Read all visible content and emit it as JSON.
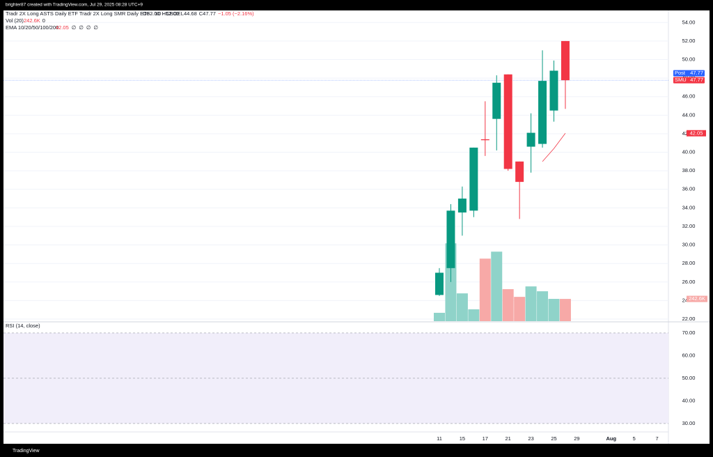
{
  "header": "brighter87 created with TradingView.com, Jul 29, 2025 08:28 UTC+9",
  "footer": "TradingView",
  "chart_data": [
    {
      "type": "candlestick",
      "title": "Tradr 2X Long ASTS Daily ETF Tradr 2X Long SMR Daily ETF · 1D · CBOE",
      "ohlc_legend": [
        "O52.00",
        "H52.00",
        "L44.68",
        "C47.77",
        "−1.05 (−2.16%)"
      ],
      "volume_legend": "Vol (20)",
      "volume_legend_values": [
        "242.6K",
        "0"
      ],
      "ema_legend": "EMA 10/20/50/100/200",
      "ema_legend_values": [
        "42.05",
        "∅",
        "∅",
        "∅",
        "∅"
      ],
      "categories": [
        "11",
        null,
        "15",
        null,
        "17",
        null,
        "21",
        null,
        "23",
        null,
        "25",
        null
      ],
      "open": [
        24.6,
        27.5,
        33.5,
        33.7,
        41.4,
        43.6,
        48.4,
        39.0,
        40.6,
        40.9,
        44.5,
        52.0
      ],
      "high": [
        27.5,
        34.4,
        36.3,
        40.5,
        45.5,
        48.3,
        48.4,
        39.0,
        44.2,
        51.0,
        49.9,
        52.0
      ],
      "low": [
        24.5,
        26.0,
        31.0,
        33.0,
        39.6,
        40.2,
        38.0,
        32.8,
        37.8,
        40.5,
        43.3,
        44.68
      ],
      "close": [
        27.0,
        33.7,
        35.0,
        40.5,
        41.3,
        47.5,
        38.2,
        36.8,
        42.1,
        47.7,
        48.8,
        47.77
      ],
      "up_color": "#089981",
      "down_color": "#f23645",
      "volume": {
        "values": [
          91,
          849,
          303,
          129,
          682,
          758,
          349,
          265,
          379,
          326,
          243,
          242.6
        ],
        "up_color": "#8fd3c9",
        "down_color": "#f7a9a7",
        "ylim": [
          0,
          3389
        ]
      },
      "volume_last_label": "242.6K",
      "ema": {
        "values": [
          null,
          null,
          null,
          null,
          null,
          null,
          null,
          null,
          null,
          39.0,
          40.4,
          42.05
        ],
        "color": "#f23645"
      },
      "price_lines": [
        {
          "name": "Post",
          "value": 47.77,
          "color": "#2962ff"
        },
        {
          "name": "SMU",
          "value": 47.77,
          "color": "#f23645"
        }
      ],
      "ylim": [
        21.7,
        55.3
      ],
      "yticks": [
        {
          "value": 22,
          "label": "22.00"
        },
        {
          "value": 24,
          "label": "24.00"
        },
        {
          "value": 26,
          "label": "26.00"
        },
        {
          "value": 28,
          "label": "28.00"
        },
        {
          "value": 30,
          "label": "30.00"
        },
        {
          "value": 32,
          "label": "32.00"
        },
        {
          "value": 34,
          "label": "34.00"
        },
        {
          "value": 36,
          "label": "36.00"
        },
        {
          "value": 38,
          "label": "38.00"
        },
        {
          "value": 40,
          "label": "40.00"
        },
        {
          "value": 42,
          "label": "42.00"
        },
        {
          "value": 44,
          "label": "44.00"
        },
        {
          "value": 46,
          "label": "46.00"
        },
        {
          "value": 48,
          "label": "48.00"
        },
        {
          "value": 50,
          "label": "50.00"
        },
        {
          "value": 52,
          "label": "52.00"
        },
        {
          "value": 54,
          "label": "54.00"
        }
      ],
      "xticks": [
        {
          "value": 12,
          "label": "29"
        },
        {
          "value": 15,
          "label": "Aug"
        },
        {
          "value": 17,
          "label": "5"
        },
        {
          "value": 19,
          "label": "7"
        }
      ],
      "grid": true
    },
    {
      "type": "rsi",
      "title": "RSI (14, close)",
      "ylim": [
        26.3,
        74.9
      ],
      "band": [
        30,
        70
      ],
      "band_color": "#f1eefa",
      "levels": [
        70,
        50,
        30
      ],
      "yticks": [
        {
          "value": 70,
          "label": "70.00"
        },
        {
          "value": 60,
          "label": "60.00"
        },
        {
          "value": 50,
          "label": "50.00"
        },
        {
          "value": 40,
          "label": "40.00"
        },
        {
          "value": 30,
          "label": "30.00"
        }
      ]
    }
  ]
}
